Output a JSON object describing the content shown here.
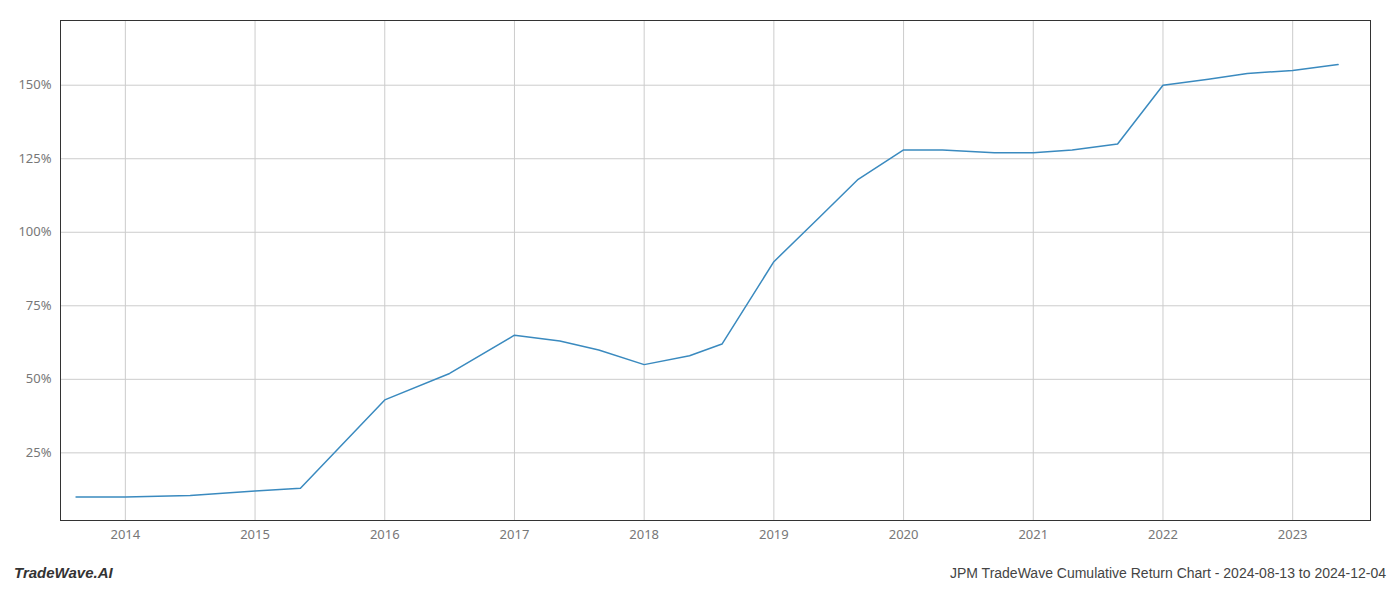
{
  "chart_data": {
    "type": "line",
    "title": "JPM TradeWave Cumulative Return Chart - 2024-08-13 to 2024-12-04",
    "annotations": [
      "TradeWave.AI"
    ],
    "x": [
      2013.62,
      2014.0,
      2014.5,
      2015.0,
      2015.35,
      2016.0,
      2016.5,
      2017.0,
      2017.35,
      2017.65,
      2018.0,
      2018.35,
      2018.6,
      2019.0,
      2019.35,
      2019.65,
      2020.0,
      2020.3,
      2020.7,
      2021.0,
      2021.3,
      2021.65,
      2022.0,
      2022.35,
      2022.65,
      2023.0,
      2023.35
    ],
    "values": [
      10,
      10,
      10.5,
      12,
      13,
      43,
      52,
      65,
      63,
      60,
      55,
      58,
      62,
      90,
      105,
      118,
      128,
      128,
      127,
      127,
      128,
      130,
      150,
      152,
      154,
      155,
      157
    ],
    "color": "#3a8abf",
    "xlim": [
      2013.5,
      2023.6
    ],
    "xticks": [
      2014,
      2015,
      2016,
      2017,
      2018,
      2019,
      2020,
      2021,
      2022,
      2023
    ],
    "ylim": [
      2,
      172
    ],
    "yticks": [
      {
        "value": 25,
        "label": "25%"
      },
      {
        "value": 50,
        "label": "50%"
      },
      {
        "value": 75,
        "label": "75%"
      },
      {
        "value": 100,
        "label": "100%"
      },
      {
        "value": 125,
        "label": "125%"
      },
      {
        "value": 150,
        "label": "150%"
      }
    ],
    "grid": true
  }
}
